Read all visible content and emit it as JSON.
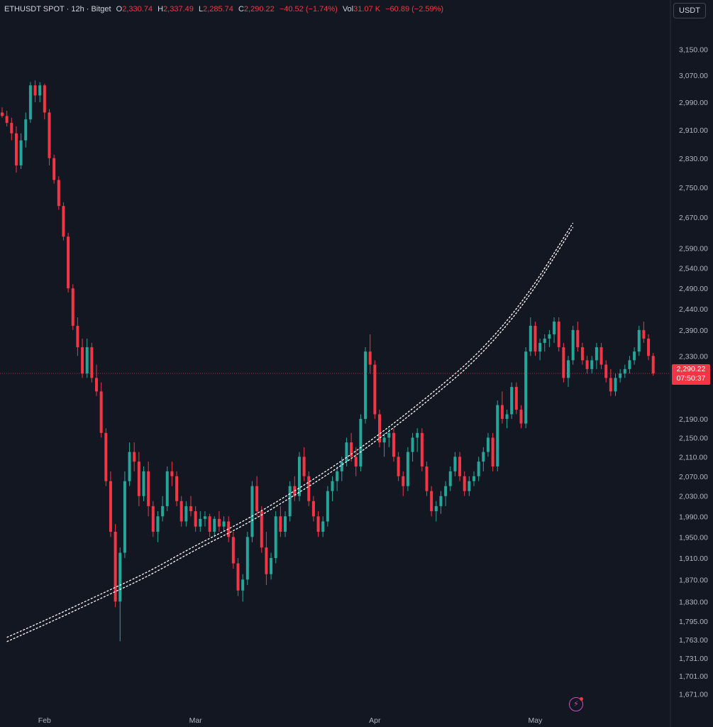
{
  "header": {
    "symbol": "ETHUSDT SPOT · 12h · Bitget",
    "o_label": "O",
    "o_value": "2,330.74",
    "h_label": "H",
    "h_value": "2,337.49",
    "l_label": "L",
    "l_value": "2,285.74",
    "c_label": "C",
    "c_value": "2,290.22",
    "change": "−40.52 (−1.74%)",
    "vol_label": "Vol",
    "vol_value": "31.07 K",
    "vol_change": "−60.89 (−2.59%)"
  },
  "currency_button": "USDT",
  "price_badge": {
    "price": "2,290.22",
    "countdown": "07:50:37"
  },
  "colors": {
    "up": "#26a69a",
    "down": "#f23645",
    "background": "#131722",
    "curve": "#ffffff"
  },
  "icons": {
    "bolt": "lightning-bolt-icon"
  },
  "chart_data": {
    "type": "candlestick",
    "y_scale": "log",
    "ylim": [
      1660,
      3195
    ],
    "y_ticks": [
      "3,150.00",
      "3,070.00",
      "2,990.00",
      "2,910.00",
      "2,830.00",
      "2,750.00",
      "2,670.00",
      "2,590.00",
      "2,540.00",
      "2,490.00",
      "2,440.00",
      "2,390.00",
      "2,330.00",
      "2,190.00",
      "2,150.00",
      "2,110.00",
      "2,070.00",
      "2,030.00",
      "1,990.00",
      "1,950.00",
      "1,910.00",
      "1,870.00",
      "1,830.00",
      "1,795.00",
      "1,763.00",
      "1,731.00",
      "1,701.00",
      "1,671.00"
    ],
    "x_ticks": [
      "Feb",
      "Mar",
      "Apr",
      "May"
    ],
    "last_price": 2290.22,
    "candles": [
      [
        2960,
        2975,
        2945,
        2950
      ],
      [
        2950,
        2965,
        2920,
        2930
      ],
      [
        2930,
        2945,
        2880,
        2900
      ],
      [
        2900,
        2920,
        2790,
        2810
      ],
      [
        2810,
        2900,
        2800,
        2880
      ],
      [
        2880,
        2960,
        2860,
        2940
      ],
      [
        2940,
        3050,
        2930,
        3040
      ],
      [
        3040,
        3055,
        2990,
        3010
      ],
      [
        3010,
        3050,
        2990,
        3040
      ],
      [
        3040,
        3045,
        2940,
        2960
      ],
      [
        2960,
        2970,
        2810,
        2830
      ],
      [
        2830,
        2840,
        2760,
        2770
      ],
      [
        2770,
        2780,
        2690,
        2700
      ],
      [
        2700,
        2710,
        2610,
        2620
      ],
      [
        2620,
        2630,
        2480,
        2490
      ],
      [
        2490,
        2500,
        2390,
        2400
      ],
      [
        2400,
        2420,
        2330,
        2350
      ],
      [
        2350,
        2370,
        2280,
        2290
      ],
      [
        2290,
        2370,
        2280,
        2350
      ],
      [
        2350,
        2360,
        2270,
        2280
      ],
      [
        2280,
        2310,
        2240,
        2250
      ],
      [
        2250,
        2270,
        2150,
        2160
      ],
      [
        2160,
        2170,
        2050,
        2060
      ],
      [
        2060,
        2080,
        1950,
        1960
      ],
      [
        1960,
        1975,
        1820,
        1830
      ],
      [
        1830,
        1930,
        1760,
        1920
      ],
      [
        1920,
        2080,
        1910,
        2060
      ],
      [
        2060,
        2140,
        2050,
        2120
      ],
      [
        2120,
        2140,
        2080,
        2100
      ],
      [
        2100,
        2120,
        2010,
        2030
      ],
      [
        2030,
        2090,
        2020,
        2080
      ],
      [
        2080,
        2100,
        1990,
        2010
      ],
      [
        2010,
        2020,
        1950,
        1960
      ],
      [
        1960,
        2000,
        1940,
        1990
      ],
      [
        1990,
        2030,
        1980,
        2010
      ],
      [
        2010,
        2090,
        2000,
        2080
      ],
      [
        2080,
        2100,
        2050,
        2070
      ],
      [
        2070,
        2080,
        2010,
        2020
      ],
      [
        2020,
        2030,
        1970,
        1980
      ],
      [
        1980,
        2020,
        1970,
        2010
      ],
      [
        2010,
        2030,
        1990,
        2000
      ],
      [
        2000,
        2010,
        1960,
        1970
      ],
      [
        1970,
        2000,
        1960,
        1985
      ],
      [
        1985,
        2000,
        1970,
        1990
      ],
      [
        1990,
        1995,
        1950,
        1960
      ],
      [
        1960,
        1990,
        1950,
        1985
      ],
      [
        1985,
        2000,
        1960,
        1970
      ],
      [
        1970,
        1990,
        1960,
        1980
      ],
      [
        1980,
        1990,
        1940,
        1950
      ],
      [
        1950,
        1960,
        1890,
        1900
      ],
      [
        1900,
        1910,
        1840,
        1850
      ],
      [
        1850,
        1880,
        1830,
        1870
      ],
      [
        1870,
        1960,
        1860,
        1950
      ],
      [
        1950,
        2060,
        1940,
        2050
      ],
      [
        2050,
        2070,
        1990,
        2000
      ],
      [
        2000,
        2010,
        1920,
        1930
      ],
      [
        1930,
        1960,
        1860,
        1880
      ],
      [
        1880,
        1920,
        1870,
        1910
      ],
      [
        1910,
        2000,
        1900,
        1990
      ],
      [
        1990,
        2010,
        1950,
        1960
      ],
      [
        1960,
        2000,
        1950,
        1990
      ],
      [
        1990,
        2060,
        1980,
        2050
      ],
      [
        2050,
        2070,
        2020,
        2030
      ],
      [
        2030,
        2120,
        2020,
        2110
      ],
      [
        2110,
        2130,
        2060,
        2070
      ],
      [
        2070,
        2080,
        2010,
        2020
      ],
      [
        2020,
        2030,
        1980,
        1990
      ],
      [
        1990,
        2000,
        1950,
        1960
      ],
      [
        1960,
        1990,
        1950,
        1980
      ],
      [
        1980,
        2050,
        1970,
        2040
      ],
      [
        2040,
        2070,
        2020,
        2060
      ],
      [
        2060,
        2090,
        2040,
        2080
      ],
      [
        2080,
        2110,
        2060,
        2100
      ],
      [
        2100,
        2150,
        2090,
        2140
      ],
      [
        2140,
        2160,
        2100,
        2110
      ],
      [
        2110,
        2130,
        2070,
        2090
      ],
      [
        2090,
        2200,
        2080,
        2190
      ],
      [
        2190,
        2350,
        2180,
        2340
      ],
      [
        2340,
        2380,
        2290,
        2310
      ],
      [
        2310,
        2320,
        2190,
        2200
      ],
      [
        2200,
        2210,
        2130,
        2140
      ],
      [
        2140,
        2160,
        2110,
        2150
      ],
      [
        2150,
        2170,
        2130,
        2160
      ],
      [
        2160,
        2170,
        2100,
        2110
      ],
      [
        2110,
        2120,
        2060,
        2070
      ],
      [
        2070,
        2080,
        2030,
        2050
      ],
      [
        2050,
        2130,
        2040,
        2120
      ],
      [
        2120,
        2160,
        2100,
        2150
      ],
      [
        2150,
        2170,
        2120,
        2160
      ],
      [
        2160,
        2170,
        2080,
        2090
      ],
      [
        2090,
        2100,
        2030,
        2040
      ],
      [
        2040,
        2050,
        1990,
        2000
      ],
      [
        2000,
        2020,
        1980,
        2010
      ],
      [
        2010,
        2040,
        1995,
        2030
      ],
      [
        2030,
        2060,
        2010,
        2050
      ],
      [
        2050,
        2090,
        2040,
        2080
      ],
      [
        2080,
        2120,
        2070,
        2110
      ],
      [
        2110,
        2120,
        2060,
        2070
      ],
      [
        2070,
        2080,
        2030,
        2040
      ],
      [
        2040,
        2070,
        2030,
        2060
      ],
      [
        2060,
        2080,
        2050,
        2070
      ],
      [
        2070,
        2110,
        2060,
        2100
      ],
      [
        2100,
        2130,
        2080,
        2120
      ],
      [
        2120,
        2160,
        2110,
        2150
      ],
      [
        2150,
        2160,
        2080,
        2090
      ],
      [
        2090,
        2230,
        2080,
        2220
      ],
      [
        2220,
        2250,
        2180,
        2190
      ],
      [
        2190,
        2210,
        2170,
        2200
      ],
      [
        2200,
        2270,
        2190,
        2260
      ],
      [
        2260,
        2270,
        2200,
        2210
      ],
      [
        2210,
        2220,
        2170,
        2180
      ],
      [
        2180,
        2350,
        2170,
        2340
      ],
      [
        2340,
        2420,
        2330,
        2400
      ],
      [
        2400,
        2410,
        2330,
        2340
      ],
      [
        2340,
        2370,
        2320,
        2360
      ],
      [
        2360,
        2380,
        2340,
        2370
      ],
      [
        2370,
        2390,
        2350,
        2380
      ],
      [
        2380,
        2420,
        2360,
        2410
      ],
      [
        2410,
        2420,
        2340,
        2350
      ],
      [
        2350,
        2360,
        2270,
        2280
      ],
      [
        2280,
        2330,
        2260,
        2320
      ],
      [
        2320,
        2400,
        2310,
        2390
      ],
      [
        2390,
        2410,
        2340,
        2350
      ],
      [
        2350,
        2360,
        2310,
        2320
      ],
      [
        2320,
        2330,
        2290,
        2300
      ],
      [
        2300,
        2330,
        2290,
        2320
      ],
      [
        2320,
        2360,
        2300,
        2350
      ],
      [
        2350,
        2360,
        2300,
        2310
      ],
      [
        2310,
        2320,
        2270,
        2280
      ],
      [
        2280,
        2300,
        2240,
        2250
      ],
      [
        2250,
        2290,
        2240,
        2280
      ],
      [
        2280,
        2300,
        2270,
        2290
      ],
      [
        2290,
        2310,
        2280,
        2300
      ],
      [
        2300,
        2330,
        2290,
        2320
      ],
      [
        2320,
        2350,
        2310,
        2340
      ],
      [
        2340,
        2400,
        2330,
        2390
      ],
      [
        2390,
        2410,
        2360,
        2370
      ],
      [
        2370,
        2380,
        2320,
        2330
      ],
      [
        2330,
        2337,
        2285,
        2290
      ]
    ],
    "curve_points": [
      [
        1,
        1763
      ],
      [
        11,
        1800
      ],
      [
        21,
        1840
      ],
      [
        31,
        1880
      ],
      [
        41,
        1930
      ],
      [
        51,
        1975
      ],
      [
        61,
        2030
      ],
      [
        71,
        2090
      ],
      [
        81,
        2160
      ],
      [
        91,
        2240
      ],
      [
        101,
        2330
      ],
      [
        111,
        2460
      ],
      [
        121,
        2650
      ]
    ]
  }
}
